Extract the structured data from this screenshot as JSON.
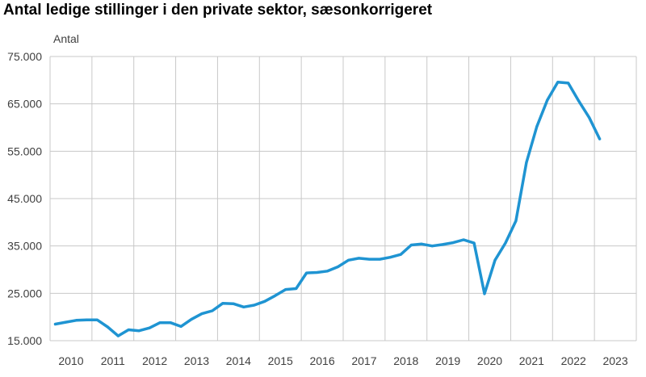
{
  "chart_data": {
    "type": "line",
    "title": "Antal ledige stillinger i den private sektor, sæsonkorrigeret",
    "ylabel": "Antal",
    "xlabel": "",
    "ylim": [
      15000,
      75000
    ],
    "y_ticks": [
      15000,
      25000,
      35000,
      45000,
      55000,
      65000,
      75000
    ],
    "y_tick_labels": [
      "15.000",
      "25.000",
      "35.000",
      "45.000",
      "55.000",
      "65.000",
      "75.000"
    ],
    "categories": [
      "2010",
      "2011",
      "2012",
      "2013",
      "2014",
      "2015",
      "2016",
      "2017",
      "2018",
      "2019",
      "2020",
      "2021",
      "2022",
      "2023"
    ],
    "grid": true,
    "legend": "none",
    "color": "#1f94d2",
    "series": [
      {
        "x": [
          "2010K1",
          "2010K2",
          "2010K3",
          "2010K4",
          "2011K1",
          "2011K2",
          "2011K3",
          "2011K4",
          "2012K1",
          "2012K2",
          "2012K3",
          "2012K4",
          "2013K1",
          "2013K2",
          "2013K3",
          "2013K4",
          "2014K1",
          "2014K2",
          "2014K3",
          "2014K4",
          "2015K1",
          "2015K2",
          "2015K3",
          "2015K4",
          "2016K1",
          "2016K2",
          "2016K3",
          "2016K4",
          "2017K1",
          "2017K2",
          "2017K3",
          "2017K4",
          "2018K1",
          "2018K2",
          "2018K3",
          "2018K4",
          "2019K1",
          "2019K2",
          "2019K3",
          "2019K4",
          "2020K1",
          "2020K2",
          "2020K3",
          "2020K4",
          "2021K1",
          "2021K2",
          "2021K3",
          "2021K4",
          "2022K1",
          "2022K2",
          "2022K3",
          "2022K4",
          "2023K1"
        ],
        "values": [
          18500,
          18900,
          19300,
          19400,
          19400,
          17900,
          16000,
          17300,
          17100,
          17700,
          18800,
          18800,
          18000,
          19500,
          20700,
          21300,
          22900,
          22800,
          22100,
          22500,
          23300,
          24500,
          25800,
          26000,
          29300,
          29400,
          29700,
          30600,
          32000,
          32400,
          32200,
          32200,
          32600,
          33200,
          35200,
          35400,
          35000,
          35300,
          35700,
          36300,
          35600,
          24900,
          32000,
          35600,
          40300,
          52600,
          60200,
          65800,
          69600,
          69400,
          65600,
          62100,
          57600
        ]
      }
    ]
  }
}
